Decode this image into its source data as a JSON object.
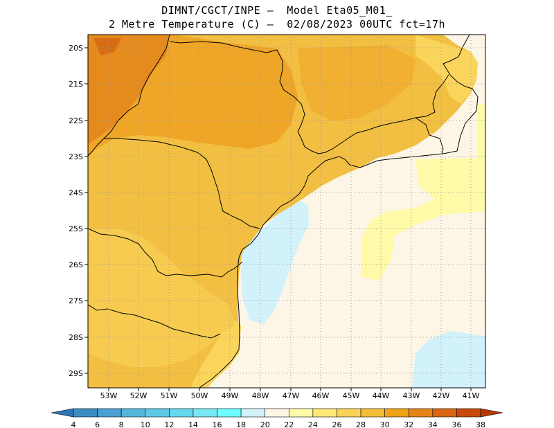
{
  "header": {
    "line1": "DIMNT/CGCT/INPE –  Model Eta05_M01_",
    "line2": "2 Metre Temperature (C) –  02/08/2023 00UTC fct=17h"
  },
  "map": {
    "lat_labels": [
      "20S",
      "21S",
      "22S",
      "23S",
      "24S",
      "25S",
      "26S",
      "27S",
      "28S",
      "29S"
    ],
    "lon_labels": [
      "53W",
      "52W",
      "51W",
      "50W",
      "49W",
      "48W",
      "47W",
      "46W",
      "45W",
      "44W",
      "43W",
      "42W",
      "41W"
    ],
    "lat_range": [
      -29.4,
      -19.8
    ],
    "lon_range": [
      -53.6,
      -40.6
    ]
  },
  "colorbar": {
    "labels": [
      "4",
      "6",
      "8",
      "10",
      "12",
      "14",
      "16",
      "18",
      "20",
      "22",
      "24",
      "26",
      "28",
      "30",
      "32",
      "34",
      "36",
      "38"
    ],
    "colors": [
      "#2c74b4",
      "#3e8cc4",
      "#4aa0d0",
      "#55b6dc",
      "#5ec8e6",
      "#66d8ee",
      "#78e8f6",
      "#70ffff",
      "#d2f2fb",
      "#fdf6e6",
      "#fefaa8",
      "#fde878",
      "#fad258",
      "#f4be3a",
      "#f1a318",
      "#e4841a",
      "#d86414",
      "#c84a0a",
      "#b83800"
    ]
  }
}
